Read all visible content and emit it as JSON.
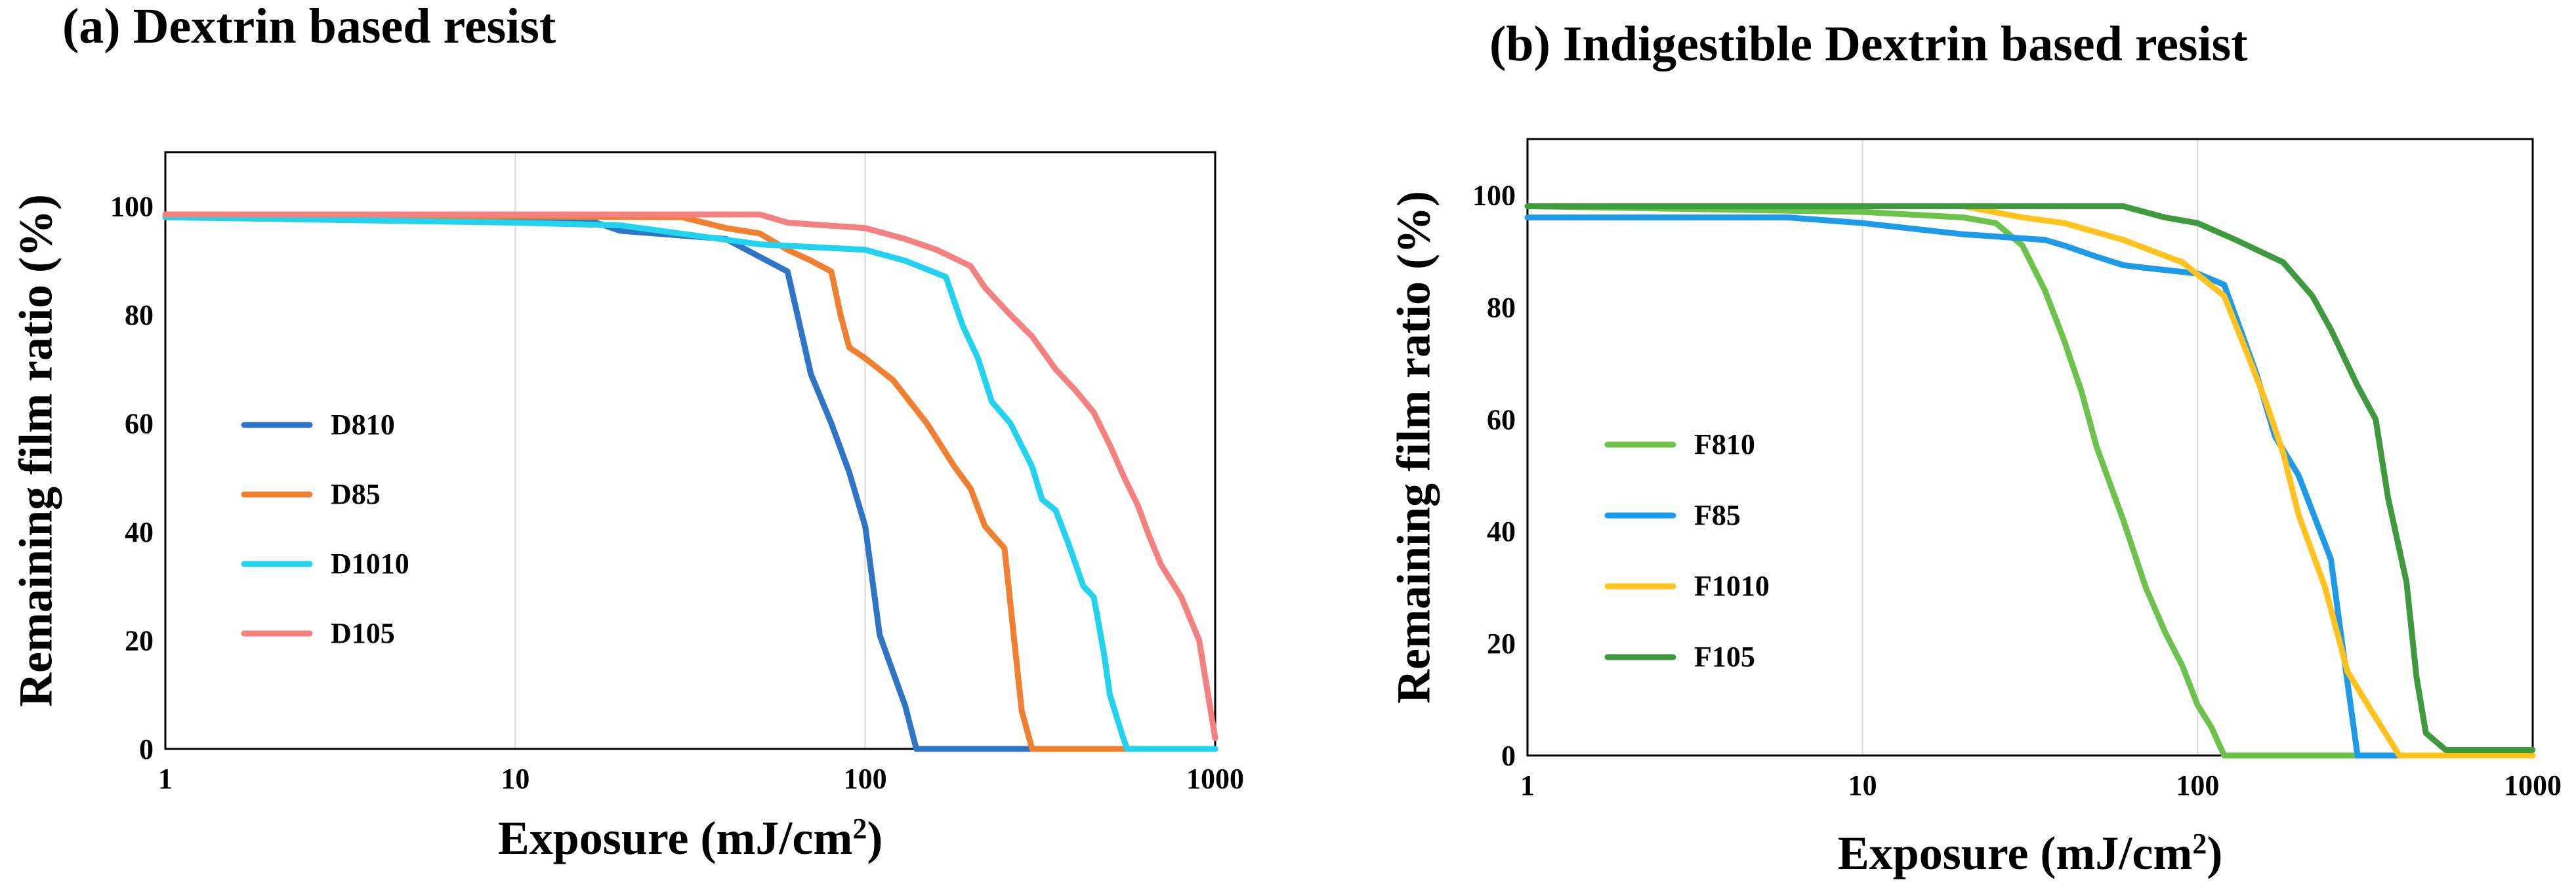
{
  "chart_data": [
    {
      "type": "line",
      "panel": "a",
      "title": "(a) Dextrin based resist",
      "xlabel": "Exposure (mJ/cm",
      "xlabel_sup": "2",
      "xlabel_close": ")",
      "ylabel": "Remaining film ratio (%)",
      "xscale": "log",
      "xlim": [
        1,
        1000
      ],
      "ylim": [
        0,
        110
      ],
      "x_ticks": [
        1,
        10,
        100,
        1000
      ],
      "x_tick_labels": [
        "1",
        "10",
        "100",
        "1000"
      ],
      "y_ticks": [
        0,
        20,
        40,
        60,
        80,
        100
      ],
      "y_tick_labels": [
        "0",
        "20",
        "40",
        "60",
        "80",
        "100"
      ],
      "grid": "vertical",
      "legend": "left",
      "series": [
        {
          "name": "D810",
          "color": "#2E75C8",
          "points": [
            [
              1,
              98
            ],
            [
              10,
              97.5
            ],
            [
              17,
              97
            ],
            [
              20,
              95.5
            ],
            [
              40,
              94
            ],
            [
              60,
              88
            ],
            [
              70,
              69
            ],
            [
              80,
              60
            ],
            [
              90,
              51
            ],
            [
              100,
              41
            ],
            [
              110,
              21
            ],
            [
              130,
              8
            ],
            [
              140,
              0
            ],
            [
              1000,
              0
            ]
          ]
        },
        {
          "name": "D85",
          "color": "#F08030",
          "points": [
            [
              1,
              98.5
            ],
            [
              30,
              98
            ],
            [
              40,
              96
            ],
            [
              50,
              95
            ],
            [
              60,
              92
            ],
            [
              70,
              90
            ],
            [
              80,
              88
            ],
            [
              85,
              80
            ],
            [
              90,
              74
            ],
            [
              100,
              72
            ],
            [
              120,
              68
            ],
            [
              150,
              60
            ],
            [
              180,
              52
            ],
            [
              200,
              48
            ],
            [
              220,
              41
            ],
            [
              250,
              37
            ],
            [
              280,
              7
            ],
            [
              300,
              0
            ],
            [
              1000,
              0
            ]
          ]
        },
        {
          "name": "D1010",
          "color": "#22D3F0",
          "points": [
            [
              1,
              98
            ],
            [
              10,
              97
            ],
            [
              20,
              96.5
            ],
            [
              50,
              93
            ],
            [
              100,
              92
            ],
            [
              130,
              90
            ],
            [
              170,
              87
            ],
            [
              190,
              78
            ],
            [
              210,
              72
            ],
            [
              230,
              64
            ],
            [
              260,
              60
            ],
            [
              300,
              52
            ],
            [
              320,
              46
            ],
            [
              350,
              44
            ],
            [
              380,
              38
            ],
            [
              420,
              30
            ],
            [
              450,
              28
            ],
            [
              480,
              18
            ],
            [
              500,
              10
            ],
            [
              540,
              3
            ],
            [
              560,
              0
            ],
            [
              1000,
              0
            ]
          ]
        },
        {
          "name": "D105",
          "color": "#F58080",
          "points": [
            [
              1,
              98.5
            ],
            [
              50,
              98.5
            ],
            [
              60,
              97
            ],
            [
              100,
              96
            ],
            [
              130,
              94
            ],
            [
              160,
              92
            ],
            [
              200,
              89
            ],
            [
              220,
              85
            ],
            [
              260,
              80
            ],
            [
              300,
              76
            ],
            [
              350,
              70
            ],
            [
              400,
              66
            ],
            [
              450,
              62
            ],
            [
              500,
              56
            ],
            [
              550,
              50
            ],
            [
              600,
              45
            ],
            [
              650,
              39
            ],
            [
              700,
              34
            ],
            [
              800,
              28
            ],
            [
              900,
              20
            ],
            [
              1000,
              2
            ]
          ]
        }
      ]
    },
    {
      "type": "line",
      "panel": "b",
      "title": "(b) Indigestible Dextrin based resist",
      "xlabel": "Exposure (mJ/cm",
      "xlabel_sup": "2",
      "xlabel_close": ")",
      "ylabel": "Remaining film ratio (%)",
      "xscale": "log",
      "xlim": [
        1,
        1000
      ],
      "ylim": [
        0,
        110
      ],
      "x_ticks": [
        1,
        10,
        100,
        1000
      ],
      "x_tick_labels": [
        "1",
        "10",
        "100",
        "1000"
      ],
      "y_ticks": [
        0,
        20,
        40,
        60,
        80,
        100
      ],
      "y_tick_labels": [
        "0",
        "20",
        "40",
        "60",
        "80",
        "100"
      ],
      "grid": "vertical",
      "legend": "left",
      "series": [
        {
          "name": "F810",
          "color": "#6CC24A",
          "points": [
            [
              1,
              98
            ],
            [
              10,
              97
            ],
            [
              20,
              96
            ],
            [
              25,
              95
            ],
            [
              30,
              91
            ],
            [
              35,
              83
            ],
            [
              40,
              74
            ],
            [
              45,
              65
            ],
            [
              50,
              55
            ],
            [
              60,
              42
            ],
            [
              70,
              30
            ],
            [
              80,
              22
            ],
            [
              90,
              16
            ],
            [
              100,
              9
            ],
            [
              110,
              5
            ],
            [
              120,
              0
            ],
            [
              1000,
              0
            ]
          ]
        },
        {
          "name": "F85",
          "color": "#1E9BE8",
          "points": [
            [
              1,
              96
            ],
            [
              6,
              96
            ],
            [
              10,
              95
            ],
            [
              20,
              93
            ],
            [
              35,
              92
            ],
            [
              40,
              91
            ],
            [
              50,
              89
            ],
            [
              60,
              87.5
            ],
            [
              70,
              87
            ],
            [
              100,
              86
            ],
            [
              120,
              84
            ],
            [
              150,
              68
            ],
            [
              170,
              57
            ],
            [
              200,
              50
            ],
            [
              250,
              35
            ],
            [
              270,
              20
            ],
            [
              300,
              0
            ],
            [
              1000,
              0
            ]
          ]
        },
        {
          "name": "F1010",
          "color": "#FFC21E",
          "points": [
            [
              1,
              98
            ],
            [
              20,
              98
            ],
            [
              30,
              96
            ],
            [
              40,
              95
            ],
            [
              60,
              92
            ],
            [
              90,
              88
            ],
            [
              120,
              82
            ],
            [
              140,
              72
            ],
            [
              160,
              63
            ],
            [
              180,
              54
            ],
            [
              200,
              43
            ],
            [
              240,
              30
            ],
            [
              280,
              15
            ],
            [
              330,
              8
            ],
            [
              400,
              0
            ],
            [
              1000,
              0
            ]
          ]
        },
        {
          "name": "F105",
          "color": "#3E9A3C",
          "points": [
            [
              1,
              98
            ],
            [
              60,
              98
            ],
            [
              80,
              96
            ],
            [
              100,
              95
            ],
            [
              130,
              92
            ],
            [
              180,
              88
            ],
            [
              220,
              82
            ],
            [
              250,
              76
            ],
            [
              300,
              66
            ],
            [
              340,
              60
            ],
            [
              370,
              46
            ],
            [
              420,
              31
            ],
            [
              450,
              14
            ],
            [
              480,
              4
            ],
            [
              550,
              1
            ],
            [
              1000,
              1
            ]
          ]
        }
      ]
    }
  ]
}
